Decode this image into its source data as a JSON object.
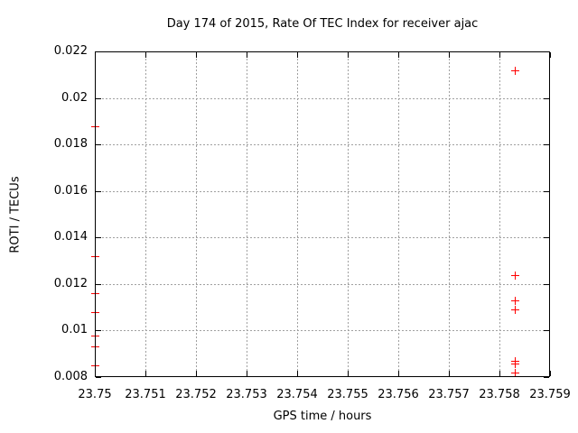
{
  "chart_data": {
    "type": "scatter",
    "title": "Day 174 of 2015, Rate Of TEC Index for receiver ajac",
    "xlabel": "GPS time / hours",
    "ylabel": "ROTI / TECUs",
    "xlim": [
      23.75,
      23.759
    ],
    "ylim": [
      0.008,
      0.022
    ],
    "grid": true,
    "legend": false,
    "x_ticks": [
      {
        "v": 23.75,
        "label": "23.75"
      },
      {
        "v": 23.751,
        "label": "23.751"
      },
      {
        "v": 23.752,
        "label": "23.752"
      },
      {
        "v": 23.753,
        "label": "23.753"
      },
      {
        "v": 23.754,
        "label": "23.754"
      },
      {
        "v": 23.755,
        "label": "23.755"
      },
      {
        "v": 23.756,
        "label": "23.756"
      },
      {
        "v": 23.757,
        "label": "23.757"
      },
      {
        "v": 23.758,
        "label": "23.758"
      },
      {
        "v": 23.759,
        "label": "23.759"
      }
    ],
    "y_ticks": [
      {
        "v": 0.008,
        "label": "0.008"
      },
      {
        "v": 0.01,
        "label": "0.01"
      },
      {
        "v": 0.012,
        "label": "0.012"
      },
      {
        "v": 0.014,
        "label": "0.014"
      },
      {
        "v": 0.016,
        "label": "0.016"
      },
      {
        "v": 0.018,
        "label": "0.018"
      },
      {
        "v": 0.02,
        "label": "0.02"
      },
      {
        "v": 0.022,
        "label": "0.022"
      }
    ],
    "colors": {
      "marker": "#ff0000",
      "axis": "#000000",
      "grid": "#a0a0a0",
      "background": "#ffffff"
    },
    "series": [
      {
        "name": "ROTI",
        "marker": "plus",
        "color": "#ff0000",
        "points": [
          [
            23.75,
            0.0188
          ],
          [
            23.75,
            0.0132
          ],
          [
            23.75,
            0.0116
          ],
          [
            23.75,
            0.0108
          ],
          [
            23.75,
            0.0098
          ],
          [
            23.75,
            0.0093
          ],
          [
            23.75,
            0.0085
          ],
          [
            23.7583,
            0.0212
          ],
          [
            23.7583,
            0.0124
          ],
          [
            23.7583,
            0.0113
          ],
          [
            23.7583,
            0.0109
          ],
          [
            23.7583,
            0.0087
          ],
          [
            23.7583,
            0.0086
          ],
          [
            23.7583,
            0.0082
          ]
        ]
      }
    ]
  }
}
